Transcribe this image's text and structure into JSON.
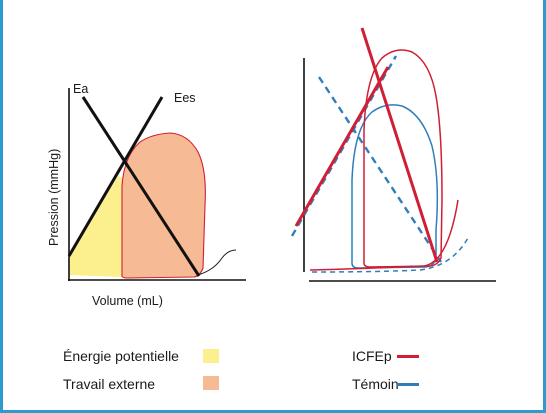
{
  "left_plot": {
    "y_label": "Pression (mmHg)",
    "x_label": "Volume (mL)",
    "line_ea_label": "Ea",
    "line_ees_label": "Ees"
  },
  "legend_left": {
    "items": [
      {
        "label": "Énergie potentielle",
        "color": "#fbef8e"
      },
      {
        "label": "Travail externe",
        "color": "#f6bb94"
      }
    ]
  },
  "legend_right": {
    "items": [
      {
        "label": "ICFEp",
        "color": "#d01f35",
        "style": "solid"
      },
      {
        "label": "Témoin",
        "color": "#2f7eb8",
        "style": "dashed"
      }
    ]
  },
  "colors": {
    "border": "#2e9ad0",
    "potential_energy": "#fbef8e",
    "external_work": "#f6bb94",
    "hfpef": "#d01f35",
    "control": "#2f7eb8"
  }
}
